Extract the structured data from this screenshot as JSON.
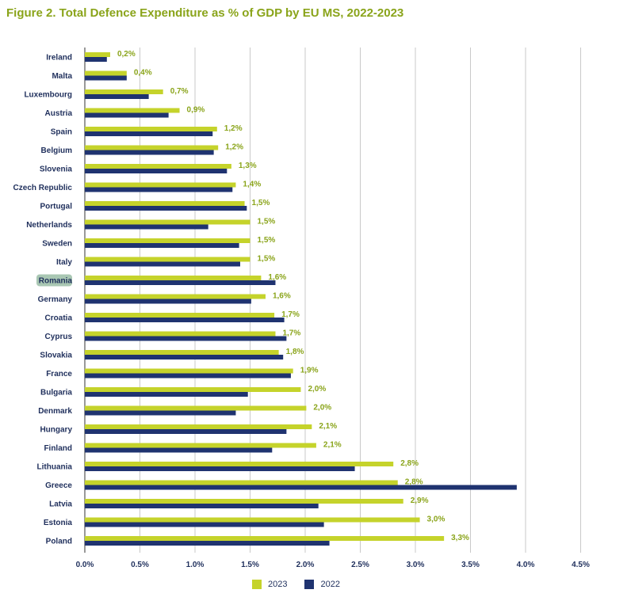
{
  "page_title": "Figure 2. Total Defence Expenditure as % of GDP by EU MS, 2022-2023",
  "colors": {
    "series_2023": "#c5d32b",
    "series_2022": "#1f3370",
    "title": "#8aa41a",
    "highlight": "#a9c7b3",
    "grid": "#c9c9c9"
  },
  "chart_data": {
    "type": "bar",
    "orientation": "horizontal",
    "title": "Figure 2. Total Defence Expenditure as % of GDP by EU MS, 2022-2023",
    "xlabel": "",
    "ylabel": "",
    "xlim": [
      0,
      4.5
    ],
    "x_ticks": [
      "0.0%",
      "0.5%",
      "1.0%",
      "1.5%",
      "2.0%",
      "2.5%",
      "3.0%",
      "3.5%",
      "4.0%",
      "4.5%"
    ],
    "grid": "vertical",
    "legend_position": "bottom",
    "highlighted_category": "Romania",
    "categories": [
      "Ireland",
      "Malta",
      "Luxembourg",
      "Austria",
      "Spain",
      "Belgium",
      "Slovenia",
      "Czech Republic",
      "Portugal",
      "Netherlands",
      "Sweden",
      "Italy",
      "Romania",
      "Germany",
      "Croatia",
      "Cyprus",
      "Slovakia",
      "France",
      "Bulgaria",
      "Denmark",
      "Hungary",
      "Finland",
      "Lithuania",
      "Greece",
      "Latvia",
      "Estonia",
      "Poland"
    ],
    "series": [
      {
        "name": "2023",
        "values": [
          0.23,
          0.38,
          0.71,
          0.86,
          1.2,
          1.21,
          1.33,
          1.37,
          1.45,
          1.5,
          1.5,
          1.5,
          1.6,
          1.64,
          1.72,
          1.73,
          1.76,
          1.89,
          1.96,
          2.01,
          2.06,
          2.1,
          2.8,
          2.84,
          2.89,
          3.04,
          3.26
        ],
        "labels": [
          "0,2%",
          "0,4%",
          "0,7%",
          "0,9%",
          "1,2%",
          "1,2%",
          "1,3%",
          "1,4%",
          "1,5%",
          "1,5%",
          "1,5%",
          "1,5%",
          "1,6%",
          "1,6%",
          "1,7%",
          "1,7%",
          "1,8%",
          "1,9%",
          "2,0%",
          "2,0%",
          "2,1%",
          "2,1%",
          "2,8%",
          "2,8%",
          "2,9%",
          "3,0%",
          "3,3%"
        ]
      },
      {
        "name": "2022",
        "values": [
          0.2,
          0.38,
          0.58,
          0.76,
          1.16,
          1.17,
          1.29,
          1.34,
          1.47,
          1.12,
          1.4,
          1.41,
          1.73,
          1.51,
          1.81,
          1.83,
          1.8,
          1.87,
          1.48,
          1.37,
          1.83,
          1.7,
          2.45,
          3.92,
          2.12,
          2.17,
          2.22
        ]
      }
    ]
  }
}
